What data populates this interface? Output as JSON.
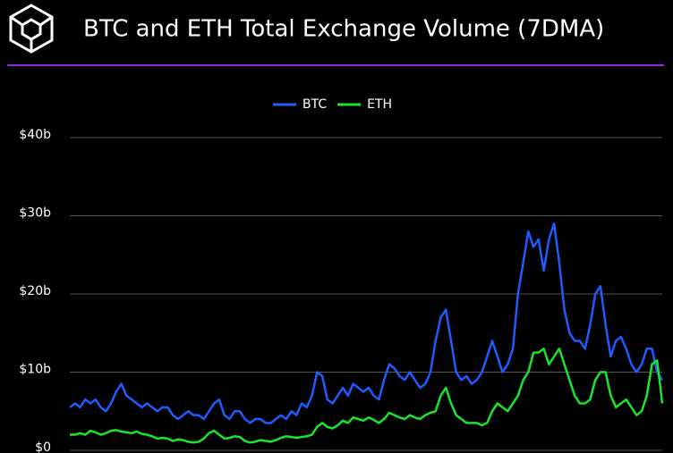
{
  "chart_data": {
    "type": "line",
    "title": "BTC and ETH Total Exchange Volume (7DMA)",
    "ylim": [
      0,
      40
    ],
    "yticks": [
      {
        "value": 0,
        "label": "$0"
      },
      {
        "value": 10,
        "label": "$10b"
      },
      {
        "value": 20,
        "label": "$20b"
      },
      {
        "value": 30,
        "label": "$30b"
      },
      {
        "value": 40,
        "label": "$40b"
      }
    ],
    "grid": true,
    "legend": "top",
    "series": [
      {
        "name": "BTC",
        "color": "#1f5cff",
        "values": [
          5.5,
          6,
          5.5,
          6.5,
          6,
          6.5,
          5.5,
          5,
          6,
          7.5,
          8.5,
          7,
          6.5,
          6,
          5.5,
          6,
          5.5,
          5,
          5.5,
          5.5,
          4.5,
          4,
          4.5,
          5,
          4.5,
          4.5,
          4,
          5,
          6,
          6.5,
          4.5,
          4,
          5,
          5,
          4,
          3.5,
          4,
          4,
          3.5,
          3.5,
          4,
          4.5,
          4,
          5,
          4.5,
          6,
          5.5,
          7,
          10,
          9.5,
          6.5,
          6,
          7,
          8,
          7,
          8.5,
          8,
          7.5,
          8,
          7,
          6.5,
          9,
          11,
          10.5,
          9.5,
          9,
          10,
          9,
          8,
          8.5,
          10,
          14,
          17,
          18,
          14,
          10,
          9,
          9.5,
          8.5,
          9,
          10,
          12,
          14,
          12,
          10,
          11,
          13,
          20,
          24,
          28,
          26,
          27,
          23,
          27,
          29,
          24,
          18,
          15,
          14,
          14,
          13,
          16,
          20,
          21,
          16,
          12,
          14,
          14.5,
          13,
          11,
          10,
          11,
          13,
          13,
          10,
          9
        ]
      },
      {
        "name": "ETH",
        "color": "#19e62a",
        "values": [
          2,
          2,
          2.2,
          2,
          2.5,
          2.3,
          2,
          2.2,
          2.5,
          2.6,
          2.4,
          2.3,
          2.2,
          2.4,
          2.1,
          2,
          1.8,
          1.5,
          1.6,
          1.5,
          1.2,
          1.4,
          1.3,
          1.1,
          1.0,
          1.1,
          1.5,
          2.2,
          2.5,
          2,
          1.5,
          1.6,
          1.8,
          1.7,
          1.2,
          1.0,
          1.1,
          1.3,
          1.2,
          1.1,
          1.3,
          1.6,
          1.8,
          1.7,
          1.6,
          1.7,
          1.8,
          2,
          3,
          3.5,
          3,
          2.8,
          3.2,
          3.8,
          3.5,
          4.2,
          4,
          3.8,
          4.2,
          3.9,
          3.5,
          4,
          4.8,
          4.5,
          4.2,
          4,
          4.5,
          4.2,
          4,
          4.5,
          4.8,
          5,
          7,
          8,
          6,
          4.5,
          4,
          3.5,
          3.5,
          3.5,
          3.2,
          3.5,
          5,
          6,
          5.5,
          5,
          6,
          7,
          9,
          10,
          12.5,
          12.5,
          13,
          11,
          12,
          13,
          11,
          9,
          7,
          6,
          6,
          6.5,
          9,
          10,
          10,
          7,
          5.5,
          6,
          6.5,
          5.5,
          4.5,
          5,
          7,
          11,
          11.5,
          6
        ]
      }
    ]
  }
}
